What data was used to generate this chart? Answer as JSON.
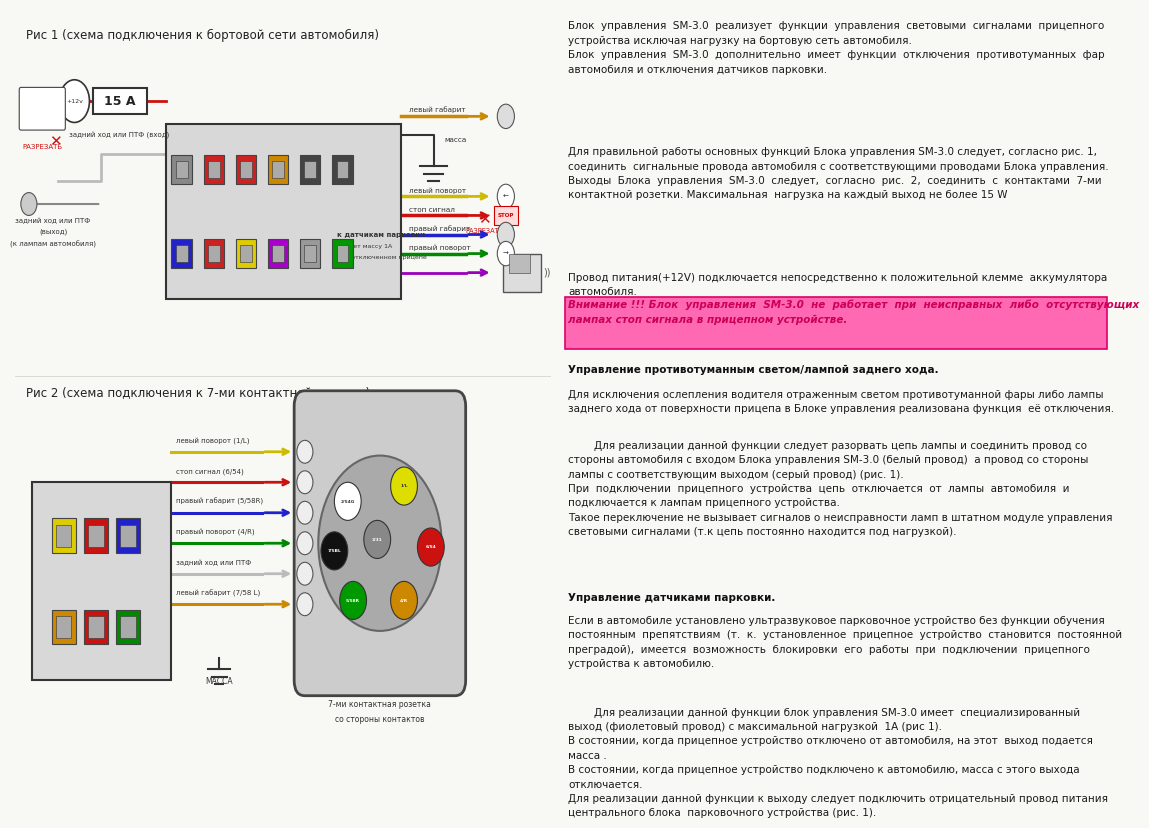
{
  "bg_color": "#f8f8f5",
  "fig1_title": "Рис 1 (схема подключения к бортовой сети автомобиля)",
  "fig2_title": "Рис 2 (схема подключения к 7-ми контактной розетке)",
  "text_block1": "Блок  управления  SM-3.0  реализует  функции  управления  световыми  сигналами  прицепного\nустройства исключая нагрузку на бортовую сеть автомобиля.\nБлок  управления  SM-3.0  дополнительно  имеет  функции  отключения  противотуманных  фар\nавтомобиля и отключения датчиков парковки.",
  "text_block2": "Для правильной работы основных функций Блока управления SM-3.0 следует, согласно рис. 1,\nсоединить  сигнальные провода автомобиля с соответствующими проводами Блока управления.\nВыходы  Блока  управления  SM-3.0  следует,  согласно  рис.  2,  соединить  с  контактами  7-ми\nконтактной розетки. Максимальная  нагрузка на каждый выход не более 15 W",
  "text_block3": "Провод питания(+12V) подключается непосредственно к положительной клемме  аккумулятора\nавтомобиля.",
  "text_block4": "Внимание !!! Блок  управления  SM-3.0  не  работает  при  неисправных  либо  отсутствующих\nлампах стоп сигнала в прицепном устройстве.",
  "text_block5_header": "Управление противотуманным светом/лампой заднего хода.",
  "text_block5": "Для исключения ослепления водителя отраженным светом противотуманной фары либо лампы\nзаднего хода от поверхности прицепа в Блоке управления реализована функция  её отключения.",
  "text_block6": "        Для реализации данной функции следует разорвать цепь лампы и соединить провод со\nстороны автомобиля с входом Блока управления SM-3.0 (белый провод)  а провод со стороны\nлампы с соответствующим выходом (серый провод) (рис. 1).\nПри  подключении  прицепного  устройства  цепь  отключается  от  лампы  автомобиля  и\nподключается к лампам прицепного устройства.\nТакое переключение не вызывает сигналов о неисправности ламп в штатном модуле управления\nсветовыми сигналами (т.к цепь постоянно находится под нагрузкой).",
  "text_block7_header": "Управление датчиками парковки.",
  "text_block7": "Если в автомобиле установлено ультразвуковое парковочное устройство без функции обучения\nпостоянным  препятствиям  (т.  к.  установленное  прицепное  устройство  становится  постоянной\nпреградой),  имеется  возможность  блокировки  его  работы  при  подключении  прицепного\nустройства к автомобилю.",
  "text_block8": "        Для реализации данной функции блок управления SM-3.0 имеет  специализированный\nвыход (фиолетовый провод) с максимальной нагрузкой  1А (рис 1).\nВ состоянии, когда прицепное устройство отключено от автомобиля, на этот  выход подается\nмасса .\nВ состоянии, когда прицепное устройство подключено к автомобилю, масса с этого выхода\nотключается.\nДля реализации данной функции к выходу следует подключить отрицательный провод питания\nцентрального блока  парковочного устройства (рис. 1).",
  "highlight_text_color": "#cc0055",
  "highlight_bg_color": "#ff69b4",
  "highlight_edge_color": "#dd0066"
}
